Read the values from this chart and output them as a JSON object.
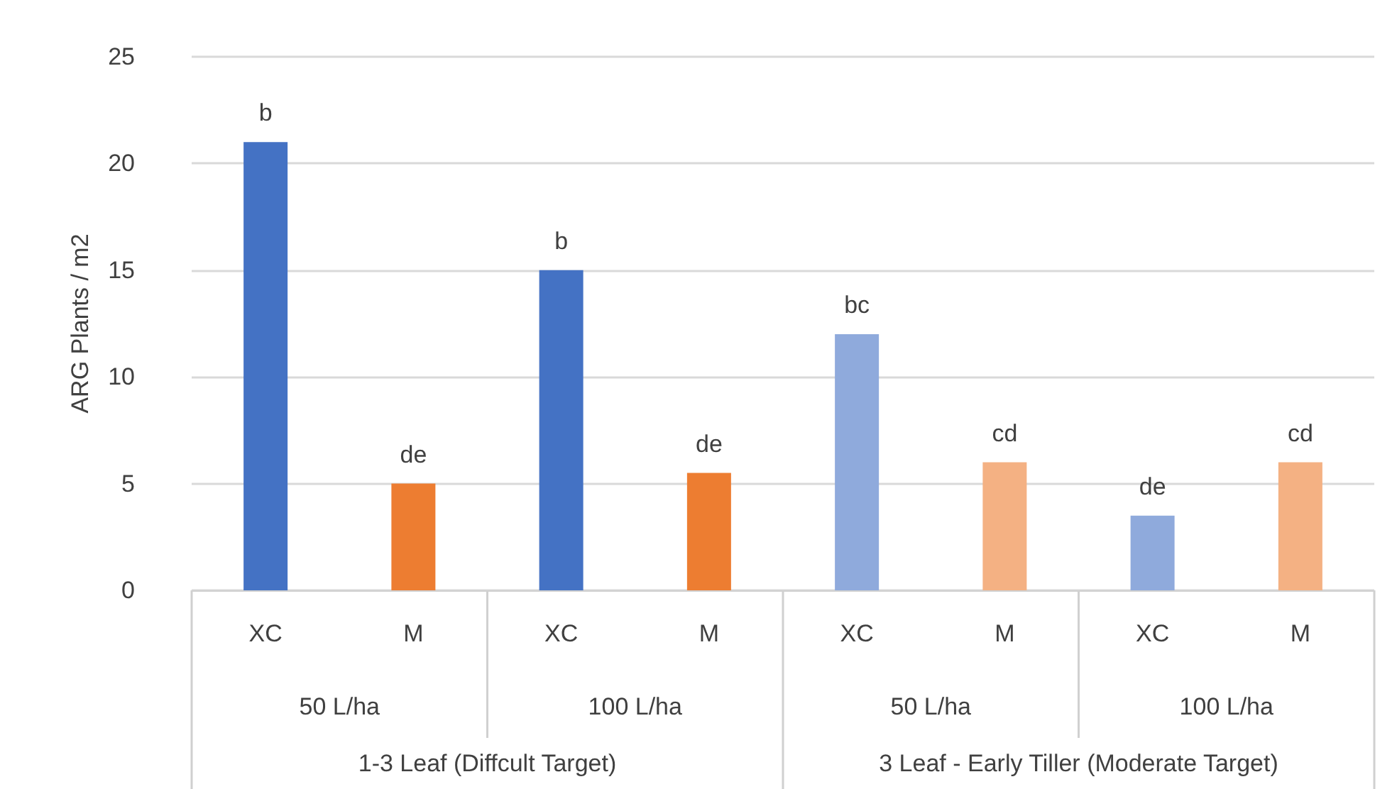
{
  "chart_data": {
    "type": "bar",
    "ylabel": "ARG Plants / m2",
    "categories": [
      "XC",
      "M",
      "XC",
      "M",
      "XC",
      "M",
      "XC",
      "M"
    ],
    "values": [
      21,
      5,
      15,
      5.5,
      12,
      6,
      3.5,
      6
    ],
    "colors": [
      "#4472c4",
      "#ed7d31",
      "#4472c4",
      "#ed7d31",
      "#8faadc",
      "#f4b183",
      "#8faadc",
      "#f4b183"
    ],
    "value_labels": [
      "b",
      "de",
      "b",
      "de",
      "bc",
      "cd",
      "de",
      "cd"
    ],
    "annotations": [
      "50 L/ha",
      "100 L/ha",
      "50 L/ha",
      "100 L/ha",
      "1-3 Leaf (Diffcult Target)",
      "3 Leaf - Early Tiller (Moderate Target)"
    ],
    "ylim": [
      0,
      25
    ],
    "yticks": [
      0,
      5,
      10,
      15,
      20,
      25
    ],
    "grid": "y"
  }
}
